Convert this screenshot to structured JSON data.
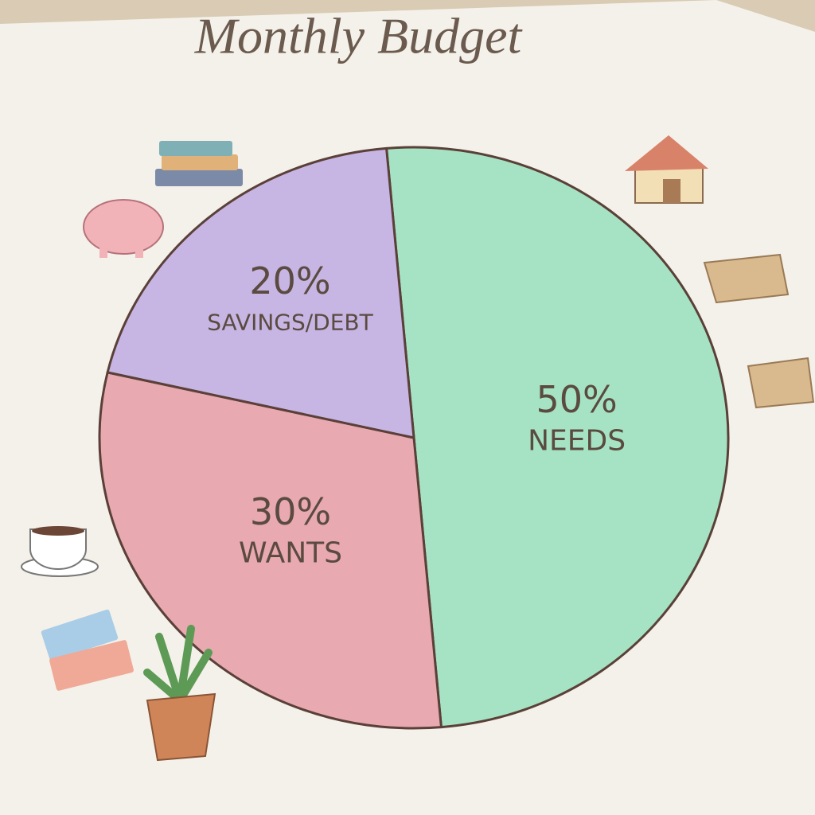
{
  "chart_data": {
    "type": "pie",
    "title": "Monthly Budget",
    "categories": [
      "NEEDS",
      "WANTS",
      "SAVINGS/DEBT"
    ],
    "values": [
      50,
      30,
      20
    ],
    "value_labels": [
      "50%",
      "30%",
      "20%"
    ],
    "colors": [
      "#a6e3c4",
      "#e8a9b0",
      "#c7b5e3"
    ]
  }
}
